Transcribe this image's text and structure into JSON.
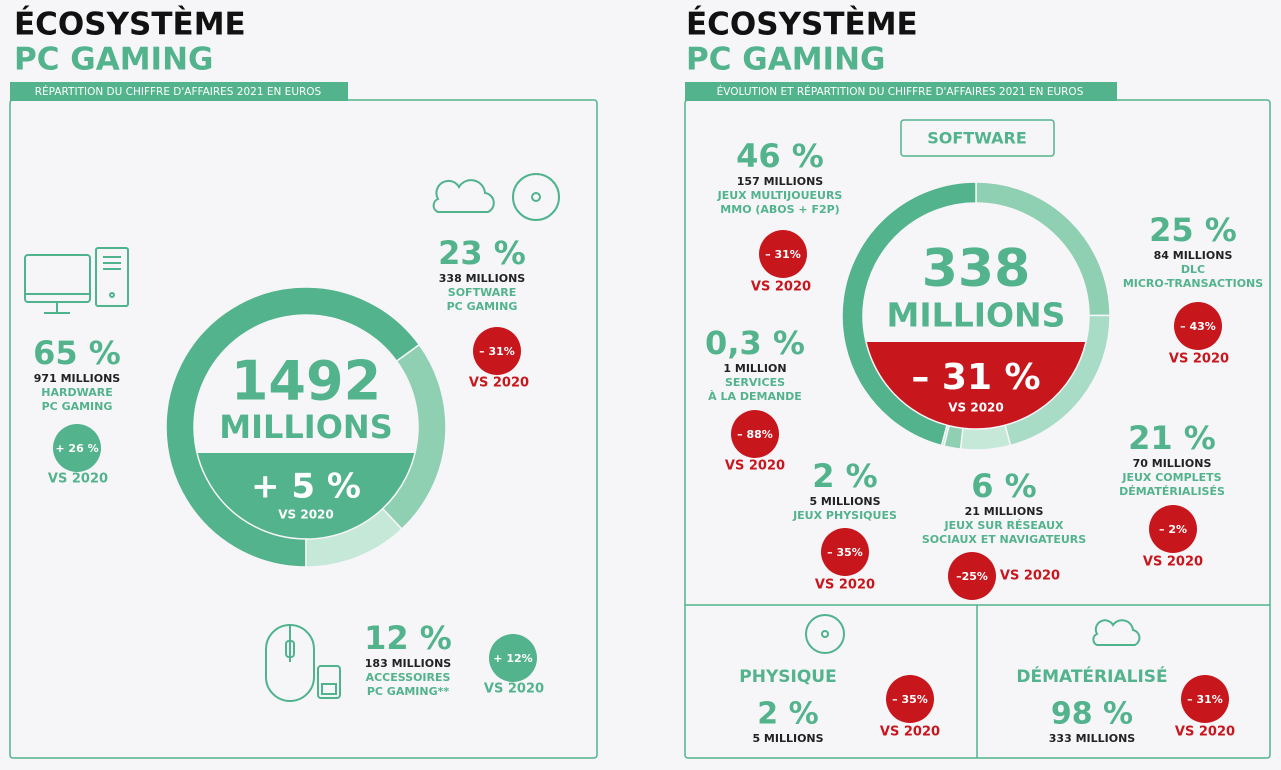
{
  "left": {
    "title": "ÉCOSYSTÈME",
    "title2": "PC GAMING",
    "tab": "RÉPARTITION DU CHIFFRE D'AFFAIRES 2021 EN EUROS",
    "center": {
      "amount": "1492",
      "unit": "MILLIONS",
      "change": "+ 5 %",
      "vs": "VS 2020"
    },
    "segments": [
      {
        "share": 65,
        "share_label": "65 %",
        "amount": "971 MILLIONS",
        "lines": [
          "HARDWARE",
          "PC GAMING"
        ],
        "change": "+ 26 %",
        "vs": "VS 2020",
        "trend": "up"
      },
      {
        "share": 23,
        "share_label": "23 %",
        "amount": "338 MILLIONS",
        "lines": [
          "SOFTWARE",
          "PC GAMING"
        ],
        "change": "– 31%",
        "vs": "VS 2020",
        "trend": "down"
      },
      {
        "share": 12,
        "share_label": "12 %",
        "amount": "183 MILLIONS",
        "lines": [
          "ACCESSOIRES",
          "PC GAMING**"
        ],
        "change": "+ 12%",
        "vs": "VS 2020",
        "trend": "up"
      }
    ]
  },
  "right": {
    "title": "ÉCOSYSTÈME",
    "title2": "PC GAMING",
    "tab": "ÉVOLUTION ET RÉPARTITION DU CHIFFRE D'AFFAIRES 2021 EN EUROS",
    "box": "SOFTWARE",
    "center": {
      "amount": "338",
      "unit": "MILLIONS",
      "change": "– 31 %",
      "vs": "VS 2020"
    },
    "segments": [
      {
        "share": 25,
        "share_label": "25 %",
        "amount": "84 MILLIONS",
        "lines": [
          "DLC",
          "MICRO-TRANSACTIONS"
        ],
        "change": "– 43%",
        "vs": "VS 2020"
      },
      {
        "share": 21,
        "share_label": "21 %",
        "amount": "70 MILLIONS",
        "lines": [
          "JEUX COMPLETS",
          "DÉMATÉRIALISÉS"
        ],
        "change": "– 2%",
        "vs": "VS 2020"
      },
      {
        "share": 6,
        "share_label": "6 %",
        "amount": "21 MILLIONS",
        "lines": [
          "JEUX SUR RÉSEAUX",
          "SOCIAUX ET NAVIGATEURS"
        ],
        "change": "–25%",
        "vs": "VS 2020"
      },
      {
        "share": 2,
        "share_label": "2 %",
        "amount": "5 MILLIONS",
        "lines": [
          "JEUX PHYSIQUES"
        ],
        "change": "– 35%",
        "vs": "VS 2020"
      },
      {
        "share": 0.3,
        "share_label": "0,3 %",
        "amount": "1 MILLION",
        "lines": [
          "SERVICES",
          "À LA DEMANDE"
        ],
        "change": "– 88%",
        "vs": "VS 2020"
      },
      {
        "share": 46,
        "share_label": "46 %",
        "amount": "157 MILLIONS",
        "lines": [
          "JEUX MULTIJOUEURS",
          "MMO (ABOS + F2P)"
        ],
        "change": "– 31%",
        "vs": "VS 2020"
      }
    ],
    "bottom": [
      {
        "name": "PHYSIQUE",
        "share_label": "2 %",
        "amount": "5 MILLIONS",
        "change": "– 35%",
        "vs": "VS 2020"
      },
      {
        "name": "DÉMATÉRIALISÉ",
        "share_label": "98 %",
        "amount": "333 MILLIONS",
        "change": "– 31%",
        "vs": "VS 2020"
      }
    ]
  }
}
